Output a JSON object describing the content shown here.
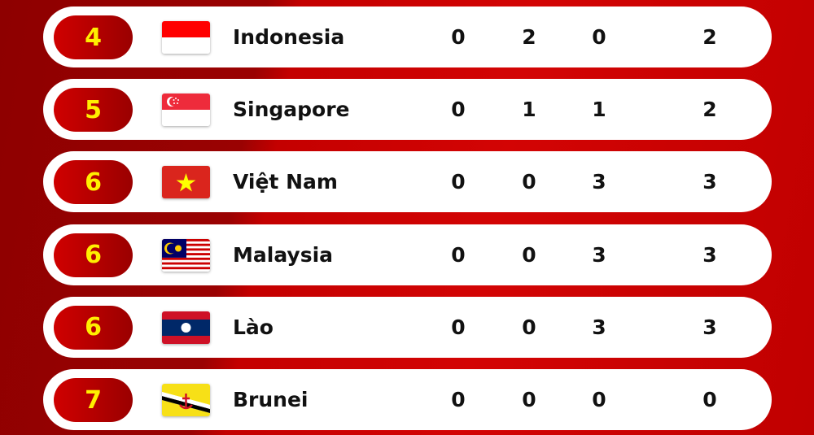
{
  "rows": [
    {
      "rank": "4",
      "country": "Indonesia",
      "flag": "indonesia-flag",
      "values": [
        "0",
        "2",
        "0",
        "2"
      ]
    },
    {
      "rank": "5",
      "country": "Singapore",
      "flag": "singapore-flag",
      "values": [
        "0",
        "1",
        "1",
        "2"
      ]
    },
    {
      "rank": "6",
      "country": "Việt Nam",
      "flag": "vietnam-flag",
      "values": [
        "0",
        "0",
        "3",
        "3"
      ]
    },
    {
      "rank": "6",
      "country": "Malaysia",
      "flag": "malaysia-flag",
      "values": [
        "0",
        "0",
        "3",
        "3"
      ]
    },
    {
      "rank": "6",
      "country": "Lào",
      "flag": "laos-flag",
      "values": [
        "0",
        "0",
        "3",
        "3"
      ]
    },
    {
      "rank": "7",
      "country": "Brunei",
      "flag": "brunei-flag",
      "values": [
        "0",
        "0",
        "0",
        "0"
      ]
    }
  ],
  "colors": {
    "rank_text": "#ffef00",
    "background": "#c00000"
  }
}
